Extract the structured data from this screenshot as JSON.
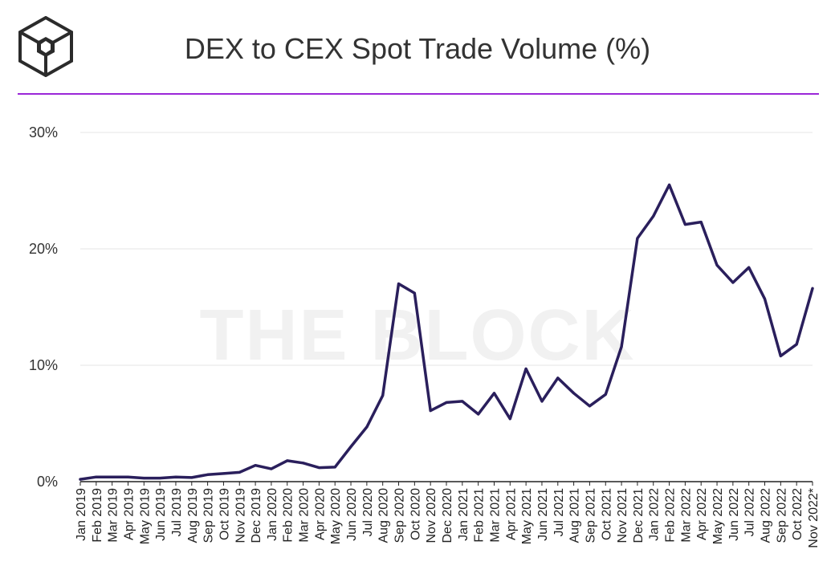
{
  "header": {
    "title": "DEX to CEX Spot Trade Volume (%)",
    "logo_icon": "the-block-cube-logo",
    "accent_color": "#9b27d8"
  },
  "watermark": "THE BLOCK",
  "chart_data": {
    "type": "line",
    "title": "DEX to CEX Spot Trade Volume (%)",
    "xlabel": "",
    "ylabel": "",
    "ylim": [
      0,
      30
    ],
    "yticks": [
      0,
      10,
      20,
      30
    ],
    "ytick_labels": [
      "0%",
      "10%",
      "20%",
      "30%"
    ],
    "grid": true,
    "legend": "none",
    "line_color": "#2a1f5c",
    "categories": [
      "Jan 2019",
      "Feb 2019",
      "Mar 2019",
      "Apr 2019",
      "May 2019",
      "Jun 2019",
      "Jul 2019",
      "Aug 2019",
      "Sep 2019",
      "Oct 2019",
      "Nov 2019",
      "Dec 2019",
      "Jan 2020",
      "Feb 2020",
      "Mar 2020",
      "Apr 2020",
      "May 2020",
      "Jun 2020",
      "Jul 2020",
      "Aug 2020",
      "Sep 2020",
      "Oct 2020",
      "Nov 2020",
      "Dec 2020",
      "Jan 2021",
      "Feb 2021",
      "Mar 2021",
      "Apr 2021",
      "May 2021",
      "Jun 2021",
      "Jul 2021",
      "Aug 2021",
      "Sep 2021",
      "Oct 2021",
      "Nov 2021",
      "Dec 2021",
      "Jan 2022",
      "Feb 2022",
      "Mar 2022",
      "Apr 2022",
      "May 2022",
      "Jun 2022",
      "Jul 2022",
      "Aug 2022",
      "Sep 2022",
      "Oct 2022",
      "Nov 2022*"
    ],
    "series": [
      {
        "values": [
          0.2,
          0.4,
          0.4,
          0.4,
          0.3,
          0.3,
          0.4,
          0.35,
          0.6,
          0.7,
          0.8,
          1.4,
          1.1,
          1.8,
          1.6,
          1.2,
          1.25,
          3.0,
          4.7,
          7.4,
          17.0,
          16.2,
          6.1,
          6.8,
          6.9,
          5.8,
          7.6,
          5.4,
          9.7,
          6.9,
          8.9,
          7.6,
          6.5,
          7.5,
          11.6,
          20.9,
          22.8,
          25.5,
          22.1,
          22.3,
          18.6,
          17.1,
          18.4,
          15.7,
          10.8,
          11.8,
          16.6
        ]
      }
    ]
  }
}
